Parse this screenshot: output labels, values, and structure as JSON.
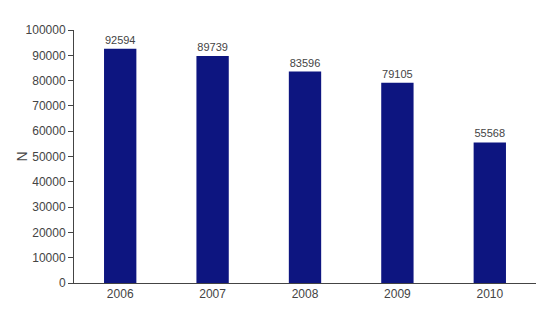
{
  "chart_data": {
    "type": "bar",
    "ylabel": "N",
    "categories": [
      "2006",
      "2007",
      "2008",
      "2009",
      "2010"
    ],
    "values": [
      92594,
      89739,
      83596,
      79105,
      55568
    ],
    "color": "#0d1580",
    "ylim": [
      0,
      100000
    ],
    "yticks": [
      0,
      10000,
      20000,
      30000,
      40000,
      50000,
      60000,
      70000,
      80000,
      90000,
      100000
    ],
    "grid": false,
    "data_labels": true
  }
}
